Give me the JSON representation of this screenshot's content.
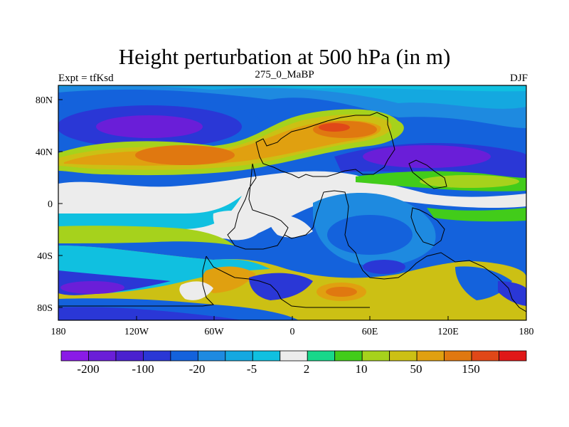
{
  "figure": {
    "title": "Height perturbation at 500 hPa (in m)",
    "left_label": "Expt = tfKsd",
    "center_label": "275_0_MaBP",
    "right_label": "DJF"
  },
  "axes": {
    "x_ticks": [
      "180",
      "120W",
      "60W",
      "0",
      "60E",
      "120E",
      "180"
    ],
    "y_ticks": [
      "80N",
      "40N",
      "0",
      "40S",
      "80S"
    ]
  },
  "colorbar": {
    "colors": [
      "#8a1be6",
      "#6a1ed8",
      "#4a20cf",
      "#2a37d6",
      "#1462dc",
      "#1e8ae0",
      "#14a8e0",
      "#10c0e0",
      "#ececec",
      "#18d88a",
      "#42cc1a",
      "#a6d21c",
      "#ccc014",
      "#e0a010",
      "#e07810",
      "#e04818",
      "#e01818"
    ],
    "labels": [
      "-200",
      "-100",
      "-20",
      "-5",
      "2",
      "10",
      "50",
      "150"
    ]
  }
}
